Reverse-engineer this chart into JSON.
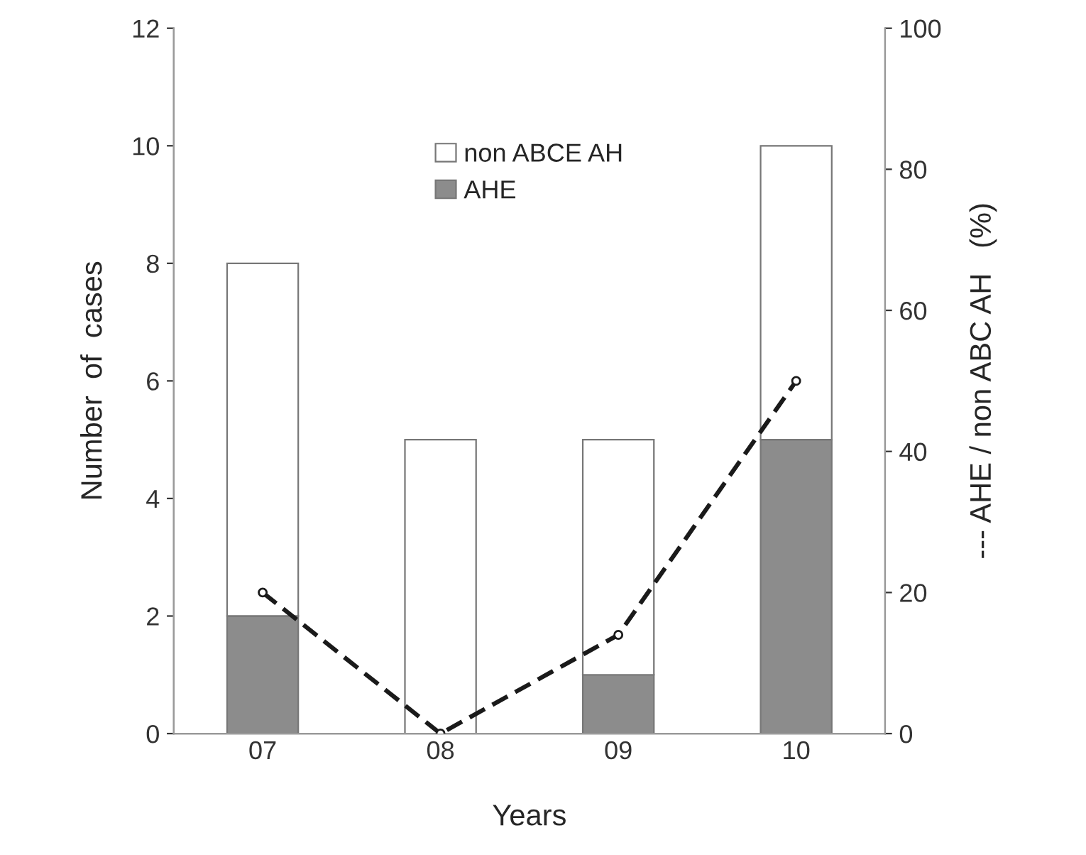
{
  "chart_data": {
    "type": "bar",
    "stacked": true,
    "xlabel": "Years",
    "ylabel": "Number  of  cases",
    "y2label": "--- AHE / non ABC AH   (%)",
    "categories": [
      "07",
      "08",
      "09",
      "10"
    ],
    "series": [
      {
        "name": "AHE",
        "color": "#8c8c8c",
        "values": [
          2,
          0,
          1,
          5
        ]
      },
      {
        "name": "non ABCE AH",
        "color": "#ffffff",
        "values": [
          6,
          5,
          4,
          5
        ]
      },
      {
        "type": "line",
        "axis": "y2",
        "color": "#1a1a1a",
        "line_style": "dashed",
        "marker": "circle",
        "values": [
          20,
          0,
          14,
          50
        ]
      }
    ],
    "ylim": [
      0,
      12
    ],
    "yticks": [
      0,
      2,
      4,
      6,
      8,
      10,
      12
    ],
    "y2lim": [
      0,
      100
    ],
    "y2ticks": [
      0,
      20,
      40,
      60,
      80,
      100
    ],
    "grid": false,
    "legend": "top"
  }
}
